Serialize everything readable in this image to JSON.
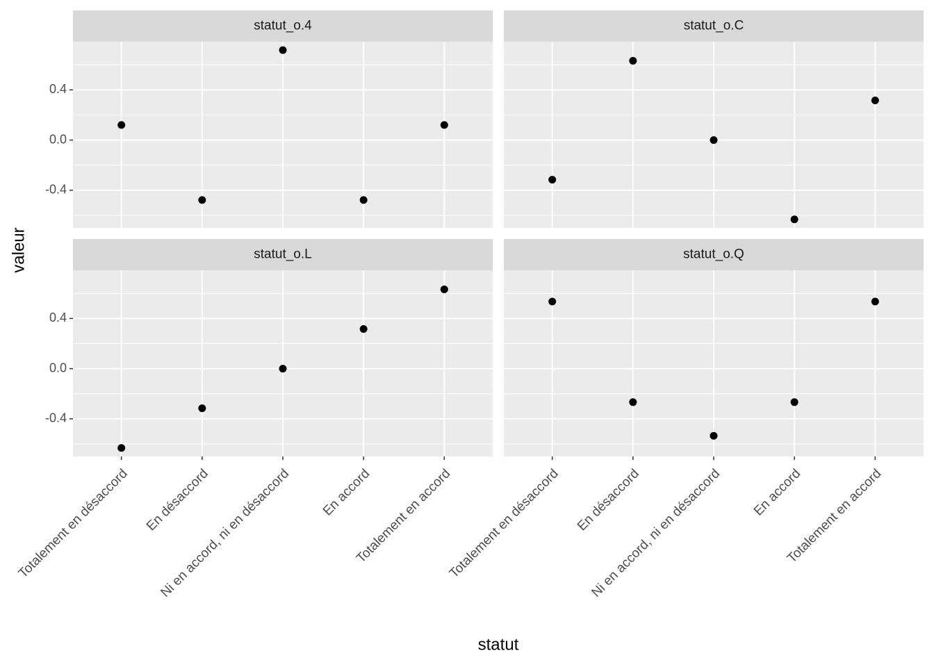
{
  "chart_data": {
    "type": "scatter",
    "x_label": "statut",
    "y_label": "valeur",
    "categories": [
      "Totalement en désaccord",
      "En désaccord",
      "Ni en accord, ni en désaccord",
      "En accord",
      "Totalement en accord"
    ],
    "ylim": [
      -0.7,
      0.784
    ],
    "yticks": [
      -0.4,
      {
        "value": 0,
        "label": "0.0"
      },
      0.4
    ],
    "grid": true,
    "color": "#000000",
    "panels": [
      {
        "title": "statut_o.4",
        "values": [
          0.12,
          -0.478,
          0.717,
          -0.478,
          0.12
        ]
      },
      {
        "title": "statut_o.C",
        "values": [
          -0.316,
          0.632,
          0,
          -0.632,
          0.316
        ]
      },
      {
        "title": "statut_o.L",
        "values": [
          -0.632,
          -0.316,
          0,
          0.316,
          0.632
        ]
      },
      {
        "title": "statut_o.Q",
        "values": [
          0.535,
          -0.267,
          -0.535,
          -0.267,
          0.535
        ]
      }
    ]
  }
}
